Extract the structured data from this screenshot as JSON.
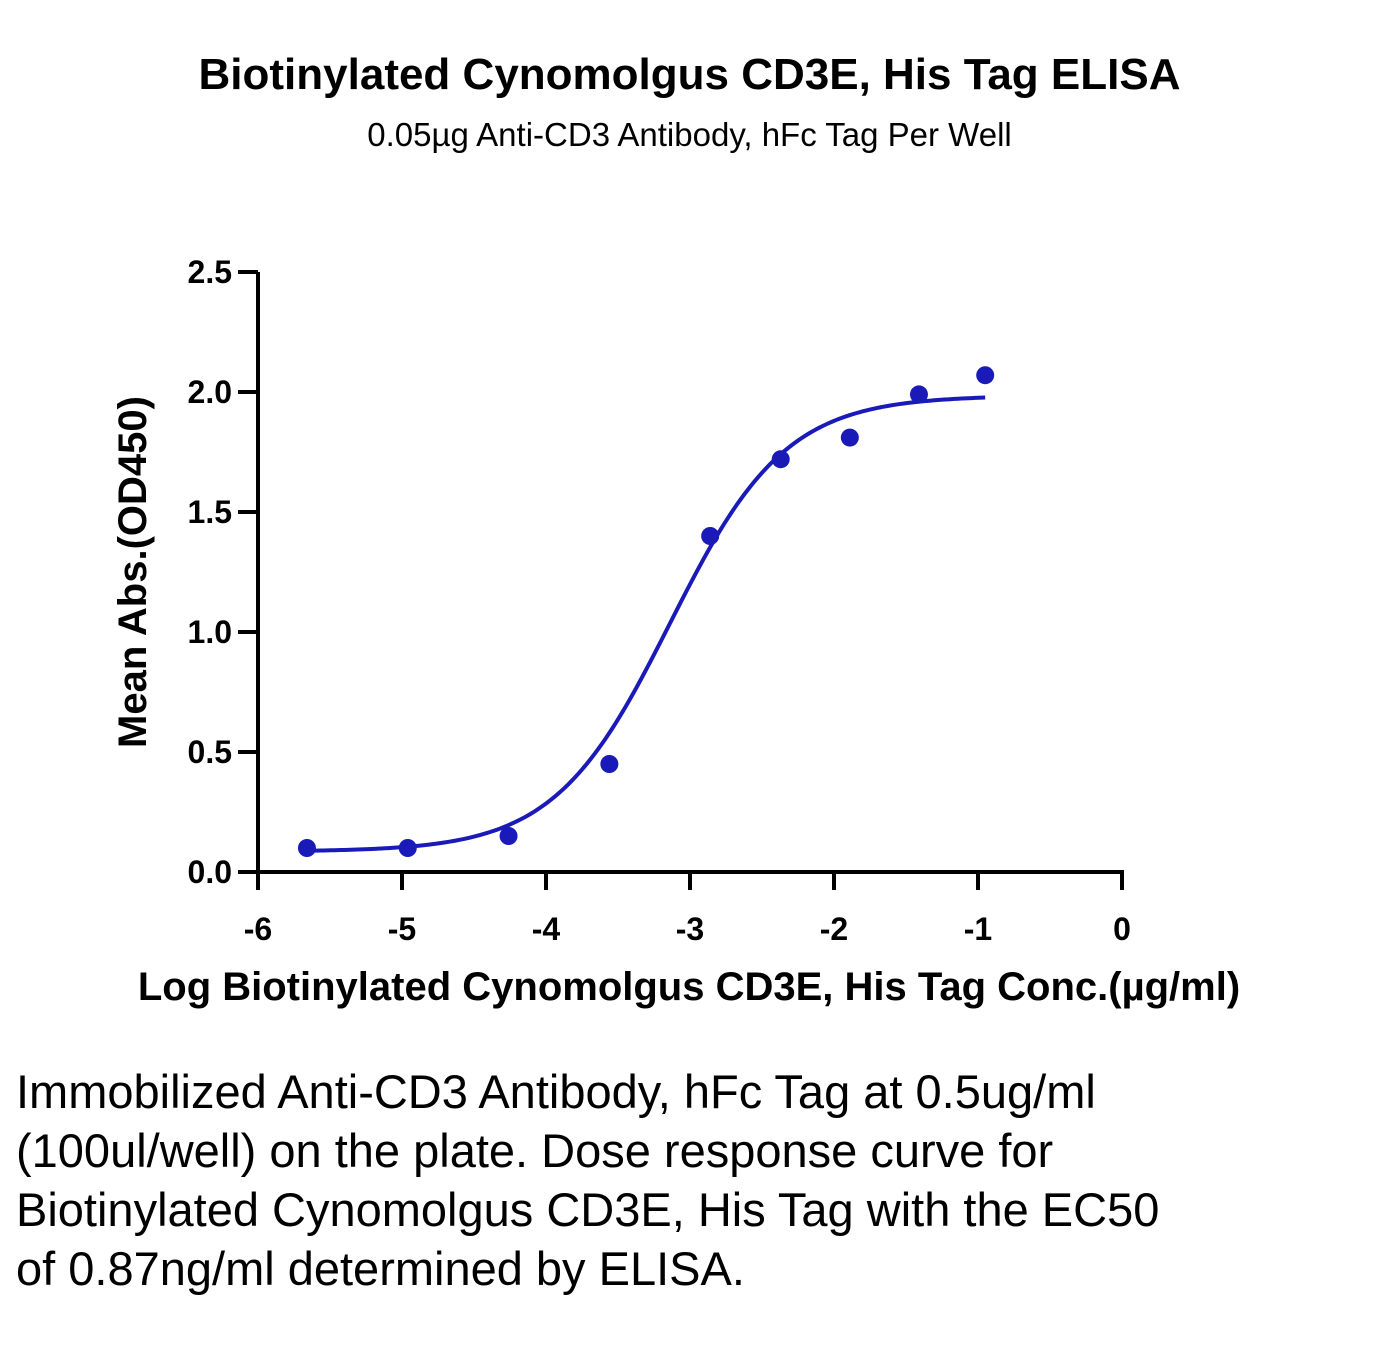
{
  "header": {
    "title": "Biotinylated Cynomolgus CD3E, His Tag ELISA",
    "subtitle": "0.05µg Anti-CD3 Antibody, hFc Tag Per Well"
  },
  "chart_data": {
    "type": "scatter",
    "title": "Biotinylated Cynomolgus CD3E, His Tag ELISA",
    "subtitle": "0.05µg Anti-CD3 Antibody, hFc Tag Per Well",
    "xlabel": "Log Biotinylated Cynomolgus CD3E, His Tag Conc.(µg/ml)",
    "ylabel": "Mean Abs.(OD450)",
    "xlim": [
      -6,
      0
    ],
    "ylim": [
      0,
      2.5
    ],
    "x_ticks": [
      -6,
      -5,
      -4,
      -3,
      -2,
      -1,
      0
    ],
    "x_tick_labels": [
      "-6",
      "-5",
      "-4",
      "-3",
      "-2",
      "-1",
      "0"
    ],
    "y_ticks": [
      0,
      0.5,
      1,
      1.5,
      2,
      2.5
    ],
    "y_tick_labels": [
      "0.0",
      "0.5",
      "1.0",
      "1.5",
      "2.0",
      "2.5"
    ],
    "grid": false,
    "color": "#1a1ab8",
    "series": [
      {
        "x": [
          -5.66,
          -4.96,
          -4.26,
          -3.56,
          -2.86,
          -2.37,
          -1.89,
          -1.41,
          -0.95
        ],
        "y": [
          0.1,
          0.1,
          0.15,
          0.45,
          1.4,
          1.72,
          1.81,
          1.99,
          2.07
        ]
      }
    ],
    "fit": {
      "model": "4PL",
      "x_start": -5.66,
      "x_end": -0.95
    }
  },
  "caption": "Immobilized Anti-CD3 Antibody, hFc Tag at 0.5ug/ml (100ul/well) on the plate. Dose response curve for Biotinylated Cynomolgus CD3E, His Tag with the EC50 of 0.87ng/ml determined by ELISA."
}
